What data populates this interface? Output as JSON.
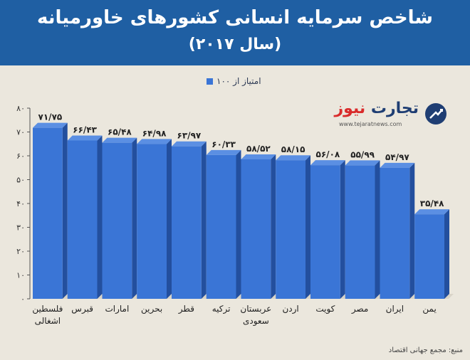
{
  "header": {
    "title": "شاخص سرمایه انسانی کشورهای خاورمیانه",
    "subtitle": "(سال ۲۰۱۷)"
  },
  "legend": {
    "label": "امتیاز از ۱۰۰"
  },
  "logo": {
    "brand_main": "تجارت",
    "brand_accent": "نیوز",
    "url": "www.tejaratnews.com"
  },
  "source": "منبع: مجمع جهانی اقتصاد",
  "colors": {
    "header_bg": "#1f5fa3",
    "bar_front": "#3a75d6",
    "bar_side": "#234f9e",
    "bar_top": "#5b8fe3",
    "background": "#ebe7dd"
  },
  "chart_data": {
    "type": "bar",
    "categories": [
      [
        "فلسطین",
        "اشغالی"
      ],
      [
        "قبرس"
      ],
      [
        "امارات"
      ],
      [
        "بحرین"
      ],
      [
        "قطر"
      ],
      [
        "ترکیه"
      ],
      [
        "عربستان",
        "سعودی"
      ],
      [
        "اردن"
      ],
      [
        "کویت"
      ],
      [
        "مصر"
      ],
      [
        "ایران"
      ],
      [
        "یمن"
      ]
    ],
    "values": [
      71.75,
      66.43,
      65.48,
      64.98,
      63.97,
      60.33,
      58.52,
      58.15,
      56.08,
      55.99,
      54.97,
      35.48
    ],
    "value_labels": [
      "۷۱/۷۵",
      "۶۶/۴۳",
      "۶۵/۴۸",
      "۶۴/۹۸",
      "۶۳/۹۷",
      "۶۰/۳۳",
      "۵۸/۵۲",
      "۵۸/۱۵",
      "۵۶/۰۸",
      "۵۵/۹۹",
      "۵۴/۹۷",
      "۳۵/۴۸"
    ],
    "ylim": [
      0,
      80
    ],
    "yticks": [
      0,
      10,
      20,
      30,
      40,
      50,
      60,
      70,
      80
    ],
    "ytick_labels": [
      "۰",
      "۱۰",
      "۲۰",
      "۳۰",
      "۴۰",
      "۵۰",
      "۶۰",
      "۷۰",
      "۸۰"
    ],
    "legend": "امتیاز از ۱۰۰",
    "grid": false
  }
}
